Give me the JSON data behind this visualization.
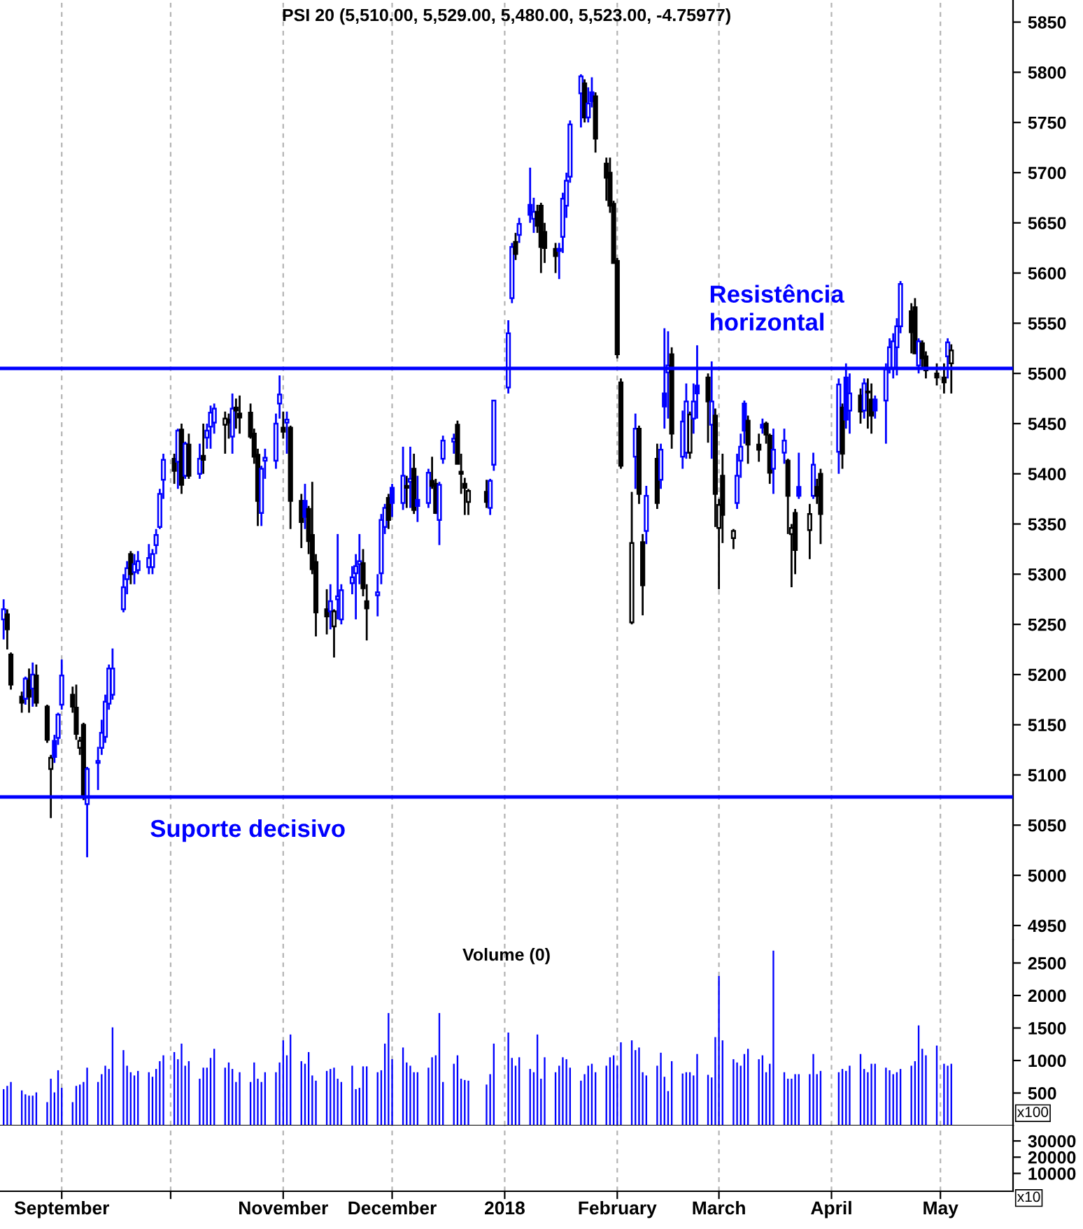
{
  "chart_data": [
    {
      "type": "candlestick",
      "title": "PSI 20 (5,510.00, 5,529.00, 5,480.00, 5,523.00, -4.75977)",
      "x": [
        "2017-08-16",
        "2017-08-17",
        "2017-08-18",
        "2017-08-21",
        "2017-08-22",
        "2017-08-23",
        "2017-08-24",
        "2017-08-25",
        "2017-08-28",
        "2017-08-29",
        "2017-08-30",
        "2017-08-31",
        "2017-09-01",
        "2017-09-04",
        "2017-09-05",
        "2017-09-06",
        "2017-09-07",
        "2017-09-08",
        "2017-09-11",
        "2017-09-12",
        "2017-09-13",
        "2017-09-14",
        "2017-09-15",
        "2017-09-18",
        "2017-09-19",
        "2017-09-20",
        "2017-09-21",
        "2017-09-22",
        "2017-09-25",
        "2017-09-26",
        "2017-09-27",
        "2017-09-28",
        "2017-09-29",
        "2017-10-02",
        "2017-10-03",
        "2017-10-04",
        "2017-10-05",
        "2017-10-06",
        "2017-10-09",
        "2017-10-10",
        "2017-10-11",
        "2017-10-12",
        "2017-10-13",
        "2017-10-16",
        "2017-10-17",
        "2017-10-18",
        "2017-10-19",
        "2017-10-20",
        "2017-10-23",
        "2017-10-24",
        "2017-10-25",
        "2017-10-26",
        "2017-10-27",
        "2017-10-30",
        "2017-10-31",
        "2017-11-01",
        "2017-11-02",
        "2017-11-03",
        "2017-11-06",
        "2017-11-07",
        "2017-11-08",
        "2017-11-09",
        "2017-11-10",
        "2017-11-13",
        "2017-11-14",
        "2017-11-15",
        "2017-11-16",
        "2017-11-17",
        "2017-11-20",
        "2017-11-21",
        "2017-11-22",
        "2017-11-23",
        "2017-11-24",
        "2017-11-27",
        "2017-11-28",
        "2017-11-29",
        "2017-11-30",
        "2017-12-01",
        "2017-12-04",
        "2017-12-05",
        "2017-12-06",
        "2017-12-07",
        "2017-12-08",
        "2017-12-11",
        "2017-12-12",
        "2017-12-13",
        "2017-12-14",
        "2017-12-15",
        "2017-12-18",
        "2017-12-19",
        "2017-12-20",
        "2017-12-21",
        "2017-12-22",
        "2017-12-27",
        "2017-12-28",
        "2017-12-29",
        "2018-01-02",
        "2018-01-03",
        "2018-01-04",
        "2018-01-05",
        "2018-01-08",
        "2018-01-09",
        "2018-01-10",
        "2018-01-11",
        "2018-01-12",
        "2018-01-15",
        "2018-01-16",
        "2018-01-17",
        "2018-01-18",
        "2018-01-19",
        "2018-01-22",
        "2018-01-23",
        "2018-01-24",
        "2018-01-25",
        "2018-01-26",
        "2018-01-29",
        "2018-01-30",
        "2018-01-31",
        "2018-02-01",
        "2018-02-02",
        "2018-02-05",
        "2018-02-06",
        "2018-02-07",
        "2018-02-08",
        "2018-02-09",
        "2018-02-12",
        "2018-02-13",
        "2018-02-14",
        "2018-02-15",
        "2018-02-16",
        "2018-02-19",
        "2018-02-20",
        "2018-02-21",
        "2018-02-22",
        "2018-02-23",
        "2018-02-26",
        "2018-02-27",
        "2018-02-28",
        "2018-03-01",
        "2018-03-02",
        "2018-03-05",
        "2018-03-06",
        "2018-03-07",
        "2018-03-08",
        "2018-03-09",
        "2018-03-12",
        "2018-03-13",
        "2018-03-14",
        "2018-03-15",
        "2018-03-16",
        "2018-03-19",
        "2018-03-20",
        "2018-03-21",
        "2018-03-22",
        "2018-03-23",
        "2018-03-26",
        "2018-03-27",
        "2018-03-28",
        "2018-03-29",
        "2018-04-03",
        "2018-04-04",
        "2018-04-05",
        "2018-04-06",
        "2018-04-09",
        "2018-04-10",
        "2018-04-11",
        "2018-04-12",
        "2018-04-13",
        "2018-04-16",
        "2018-04-17",
        "2018-04-18",
        "2018-04-19",
        "2018-04-20",
        "2018-04-23",
        "2018-04-24",
        "2018-04-25",
        "2018-04-26",
        "2018-04-27",
        "2018-04-30",
        "2018-05-02",
        "2018-05-03",
        "2018-05-04"
      ],
      "ohlc": [
        [
          5255,
          5275,
          5235,
          5265
        ],
        [
          5260,
          5265,
          5225,
          5245
        ],
        [
          5220,
          5222,
          5185,
          5190
        ],
        [
          5178,
          5183,
          5162,
          5172
        ],
        [
          5176,
          5198,
          5170,
          5196
        ],
        [
          5194,
          5206,
          5162,
          5178
        ],
        [
          5186,
          5212,
          5168,
          5200
        ],
        [
          5199,
          5210,
          5168,
          5172
        ],
        [
          5168,
          5170,
          5132,
          5135
        ],
        [
          5106,
          5120,
          5057,
          5117
        ],
        [
          5134,
          5140,
          5112,
          5118
        ],
        [
          5137,
          5162,
          5130,
          5160
        ],
        [
          5170,
          5215,
          5165,
          5199
        ],
        [
          5180,
          5188,
          5162,
          5168
        ],
        [
          5167,
          5190,
          5135,
          5141
        ],
        [
          5127,
          5138,
          5120,
          5134
        ],
        [
          5150,
          5152,
          5075,
          5080
        ],
        [
          5071,
          5108,
          5018,
          5106
        ],
        [
          5112,
          5128,
          5085,
          5114
        ],
        [
          5127,
          5155,
          5120,
          5142
        ],
        [
          5138,
          5180,
          5132,
          5173
        ],
        [
          5171,
          5210,
          5165,
          5206
        ],
        [
          5180,
          5226,
          5175,
          5206
        ],
        [
          5265,
          5300,
          5262,
          5287
        ],
        [
          5295,
          5313,
          5280,
          5306
        ],
        [
          5320,
          5323,
          5290,
          5300
        ],
        [
          5302,
          5320,
          5290,
          5310
        ],
        [
          5304,
          5323,
          5300,
          5313
        ],
        [
          5307,
          5330,
          5300,
          5316
        ],
        [
          5307,
          5325,
          5300,
          5320
        ],
        [
          5329,
          5345,
          5320,
          5339
        ],
        [
          5347,
          5385,
          5345,
          5380
        ],
        [
          5394,
          5420,
          5375,
          5414
        ],
        [
          5415,
          5420,
          5390,
          5403
        ],
        [
          5412,
          5445,
          5385,
          5443
        ],
        [
          5444,
          5450,
          5380,
          5389
        ],
        [
          5398,
          5432,
          5395,
          5430
        ],
        [
          5429,
          5440,
          5395,
          5398
        ],
        [
          5400,
          5430,
          5395,
          5415
        ],
        [
          5418,
          5450,
          5400,
          5414
        ],
        [
          5436,
          5450,
          5425,
          5443
        ],
        [
          5447,
          5468,
          5425,
          5461
        ],
        [
          5451,
          5470,
          5440,
          5465
        ],
        [
          5449,
          5462,
          5420,
          5455
        ],
        [
          5454,
          5460,
          5435,
          5451
        ],
        [
          5437,
          5480,
          5420,
          5465
        ],
        [
          5466,
          5475,
          5445,
          5463
        ],
        [
          5460,
          5478,
          5440,
          5456
        ],
        [
          5461,
          5470,
          5435,
          5437
        ],
        [
          5440,
          5445,
          5410,
          5417
        ],
        [
          5419,
          5425,
          5348,
          5373
        ],
        [
          5361,
          5408,
          5348,
          5405
        ],
        [
          5413,
          5425,
          5395,
          5416
        ],
        [
          5413,
          5460,
          5405,
          5450
        ],
        [
          5470,
          5498,
          5455,
          5479
        ],
        [
          5446,
          5462,
          5435,
          5442
        ],
        [
          5451,
          5462,
          5420,
          5454
        ],
        [
          5446,
          5448,
          5345,
          5373
        ],
        [
          5373,
          5380,
          5326,
          5352
        ],
        [
          5373,
          5390,
          5345,
          5357
        ],
        [
          5365,
          5368,
          5320,
          5333
        ],
        [
          5339,
          5392,
          5300,
          5305
        ],
        [
          5312,
          5320,
          5238,
          5262
        ],
        [
          5265,
          5285,
          5240,
          5258
        ],
        [
          5263,
          5290,
          5245,
          5273
        ],
        [
          5248,
          5265,
          5217,
          5263
        ],
        [
          5275,
          5340,
          5255,
          5278
        ],
        [
          5255,
          5290,
          5250,
          5284
        ],
        [
          5291,
          5308,
          5280,
          5297
        ],
        [
          5301,
          5320,
          5255,
          5308
        ],
        [
          5310,
          5340,
          5290,
          5313
        ],
        [
          5311,
          5325,
          5278,
          5286
        ],
        [
          5273,
          5290,
          5234,
          5266
        ],
        [
          5279,
          5300,
          5258,
          5282
        ],
        [
          5301,
          5360,
          5290,
          5354
        ],
        [
          5347,
          5370,
          5340,
          5366
        ],
        [
          5376,
          5380,
          5345,
          5354
        ],
        [
          5386,
          5390,
          5357,
          5371
        ],
        [
          5371,
          5427,
          5364,
          5398
        ],
        [
          5388,
          5398,
          5366,
          5386
        ],
        [
          5392,
          5427,
          5366,
          5395
        ],
        [
          5405,
          5420,
          5360,
          5364
        ],
        [
          5374,
          5398,
          5352,
          5368
        ],
        [
          5371,
          5405,
          5366,
          5401
        ],
        [
          5393,
          5417,
          5385,
          5388
        ],
        [
          5390,
          5395,
          5360,
          5361
        ],
        [
          5354,
          5392,
          5329,
          5389
        ],
        [
          5415,
          5438,
          5410,
          5433
        ],
        [
          5432,
          5440,
          5420,
          5435
        ],
        [
          5449,
          5453,
          5410,
          5410
        ],
        [
          5402,
          5420,
          5380,
          5400
        ],
        [
          5390,
          5396,
          5359,
          5386
        ],
        [
          5372,
          5385,
          5359,
          5383
        ],
        [
          5382,
          5394,
          5366,
          5372
        ],
        [
          5366,
          5395,
          5359,
          5393
        ],
        [
          5409,
          5473,
          5403,
          5473
        ],
        [
          5486,
          5553,
          5480,
          5540
        ],
        [
          5575,
          5630,
          5570,
          5626
        ],
        [
          5631,
          5640,
          5613,
          5619
        ],
        [
          5638,
          5655,
          5630,
          5649
        ],
        [
          5668,
          5705,
          5650,
          5658
        ],
        [
          5654,
          5675,
          5640,
          5661
        ],
        [
          5661,
          5668,
          5640,
          5647
        ],
        [
          5667,
          5670,
          5600,
          5626
        ],
        [
          5641,
          5650,
          5610,
          5625
        ],
        [
          5624,
          5630,
          5600,
          5617
        ],
        [
          5624,
          5630,
          5594,
          5622
        ],
        [
          5636,
          5680,
          5620,
          5674
        ],
        [
          5667,
          5700,
          5655,
          5692
        ],
        [
          5696,
          5752,
          5690,
          5748
        ],
        [
          5779,
          5798,
          5745,
          5796
        ],
        [
          5789,
          5793,
          5750,
          5755
        ],
        [
          5755,
          5785,
          5750,
          5769
        ],
        [
          5780,
          5795,
          5765,
          5771
        ],
        [
          5776,
          5780,
          5720,
          5734
        ],
        [
          5709,
          5715,
          5672,
          5695
        ],
        [
          5700,
          5715,
          5660,
          5667
        ],
        [
          5669,
          5672,
          5610,
          5610
        ],
        [
          5612,
          5615,
          5515,
          5519
        ],
        [
          5491,
          5495,
          5405,
          5408
        ],
        [
          5252,
          5382,
          5250,
          5331
        ],
        [
          5417,
          5460,
          5385,
          5445
        ],
        [
          5445,
          5448,
          5370,
          5380
        ],
        [
          5332,
          5340,
          5259,
          5289
        ],
        [
          5343,
          5388,
          5330,
          5378
        ],
        [
          5415,
          5430,
          5365,
          5371
        ],
        [
          5394,
          5430,
          5385,
          5424
        ],
        [
          5480,
          5545,
          5445,
          5467
        ],
        [
          5501,
          5542,
          5455,
          5508
        ],
        [
          5519,
          5526,
          5425,
          5440
        ],
        [
          5417,
          5463,
          5405,
          5452
        ],
        [
          5421,
          5490,
          5415,
          5472
        ],
        [
          5421,
          5462,
          5415,
          5459
        ],
        [
          5455,
          5490,
          5440,
          5472
        ],
        [
          5488,
          5528,
          5455,
          5480
        ],
        [
          5496,
          5500,
          5431,
          5472
        ],
        [
          5449,
          5512,
          5415,
          5472
        ],
        [
          5458,
          5465,
          5347,
          5380
        ],
        [
          5346,
          5375,
          5285,
          5369
        ],
        [
          5398,
          5420,
          5331,
          5359
        ],
        [
          5336,
          5345,
          5325,
          5343
        ],
        [
          5371,
          5420,
          5365,
          5398
        ],
        [
          5413,
          5440,
          5396,
          5427
        ],
        [
          5470,
          5473,
          5430,
          5443
        ],
        [
          5453,
          5458,
          5410,
          5429
        ],
        [
          5429,
          5440,
          5412,
          5424
        ],
        [
          5449,
          5455,
          5440,
          5446
        ],
        [
          5450,
          5452,
          5430,
          5439
        ],
        [
          5438,
          5440,
          5390,
          5401
        ],
        [
          5405,
          5445,
          5380,
          5424
        ],
        [
          5421,
          5445,
          5410,
          5433
        ],
        [
          5413,
          5415,
          5340,
          5378
        ],
        [
          5340,
          5350,
          5287,
          5346
        ],
        [
          5361,
          5365,
          5300,
          5324
        ],
        [
          5387,
          5421,
          5375,
          5378
        ],
        [
          5344,
          5370,
          5315,
          5360
        ],
        [
          5378,
          5421,
          5375,
          5409
        ],
        [
          5387,
          5395,
          5370,
          5378
        ],
        [
          5400,
          5405,
          5330,
          5360
        ],
        [
          5422,
          5495,
          5400,
          5489
        ],
        [
          5466,
          5470,
          5405,
          5420
        ],
        [
          5496,
          5510,
          5445,
          5454
        ],
        [
          5463,
          5500,
          5440,
          5480
        ],
        [
          5478,
          5485,
          5450,
          5462
        ],
        [
          5463,
          5495,
          5455,
          5490
        ],
        [
          5482,
          5495,
          5445,
          5481
        ],
        [
          5474,
          5490,
          5440,
          5458
        ],
        [
          5474,
          5478,
          5455,
          5463
        ],
        [
          5473,
          5510,
          5430,
          5504
        ],
        [
          5505,
          5535,
          5500,
          5526
        ],
        [
          5505,
          5540,
          5495,
          5532
        ],
        [
          5526,
          5555,
          5498,
          5547
        ],
        [
          5547,
          5592,
          5540,
          5589
        ],
        [
          5562,
          5570,
          5520,
          5541
        ],
        [
          5566,
          5575,
          5520,
          5520
        ],
        [
          5508,
          5535,
          5500,
          5532
        ],
        [
          5530,
          5533,
          5505,
          5515
        ],
        [
          5517,
          5522,
          5495,
          5503
        ],
        [
          5500,
          5510,
          5488,
          5496
        ],
        [
          5496,
          5510,
          5480,
          5491
        ],
        [
          5517,
          5535,
          5495,
          5531
        ],
        [
          5510,
          5529,
          5480,
          5523
        ]
      ],
      "colors": [
        "#0000ff",
        "#000000",
        "#000000",
        "#000000",
        "#0000ff",
        "#000000",
        "#0000ff",
        "#000000",
        "#000000",
        "#000000",
        "#0000ff",
        "#0000ff",
        "#0000ff",
        "#000000",
        "#000000",
        "#000000",
        "#000000",
        "#0000ff",
        "#0000ff",
        "#0000ff",
        "#0000ff",
        "#0000ff",
        "#0000ff",
        "#0000ff",
        "#0000ff",
        "#000000",
        "#0000ff",
        "#0000ff",
        "#0000ff",
        "#0000ff",
        "#0000ff",
        "#0000ff",
        "#0000ff",
        "#000000",
        "#0000ff",
        "#000000",
        "#0000ff",
        "#000000",
        "#0000ff",
        "#000000",
        "#0000ff",
        "#0000ff",
        "#0000ff",
        "#000000",
        "#000000",
        "#0000ff",
        "#000000",
        "#000000",
        "#000000",
        "#000000",
        "#000000",
        "#0000ff",
        "#0000ff",
        "#0000ff",
        "#0000ff",
        "#000000",
        "#0000ff",
        "#000000",
        "#000000",
        "#0000ff",
        "#000000",
        "#000000",
        "#000000",
        "#000000",
        "#0000ff",
        "#000000",
        "#0000ff",
        "#0000ff",
        "#0000ff",
        "#0000ff",
        "#0000ff",
        "#000000",
        "#000000",
        "#0000ff",
        "#0000ff",
        "#0000ff",
        "#000000",
        "#0000ff",
        "#0000ff",
        "#000000",
        "#0000ff",
        "#000000",
        "#0000ff",
        "#0000ff",
        "#000000",
        "#000000",
        "#0000ff",
        "#0000ff",
        "#0000ff",
        "#000000",
        "#000000",
        "#000000",
        "#000000",
        "#000000",
        "#0000ff",
        "#0000ff",
        "#0000ff",
        "#0000ff",
        "#000000",
        "#0000ff",
        "#0000ff",
        "#0000ff",
        "#000000",
        "#000000",
        "#000000",
        "#000000",
        "#0000ff",
        "#0000ff",
        "#0000ff",
        "#0000ff",
        "#0000ff",
        "#000000",
        "#0000ff",
        "#0000ff",
        "#000000",
        "#000000",
        "#000000",
        "#000000",
        "#000000",
        "#000000",
        "#000000",
        "#0000ff",
        "#000000",
        "#000000",
        "#0000ff",
        "#000000",
        "#0000ff",
        "#0000ff",
        "#0000ff",
        "#000000",
        "#0000ff",
        "#0000ff",
        "#000000",
        "#0000ff",
        "#0000ff",
        "#000000",
        "#0000ff",
        "#000000",
        "#000000",
        "#000000",
        "#000000",
        "#0000ff",
        "#0000ff",
        "#0000ff",
        "#000000",
        "#000000",
        "#0000ff",
        "#000000",
        "#000000",
        "#0000ff",
        "#0000ff",
        "#000000",
        "#000000",
        "#000000",
        "#0000ff",
        "#000000",
        "#0000ff",
        "#000000",
        "#000000",
        "#0000ff",
        "#000000",
        "#0000ff",
        "#0000ff",
        "#000000",
        "#0000ff",
        "#000000",
        "#000000",
        "#0000ff",
        "#0000ff",
        "#0000ff",
        "#0000ff",
        "#0000ff",
        "#0000ff",
        "#000000",
        "#000000",
        "#0000ff",
        "#000000",
        "#000000",
        "#000000",
        "#000000",
        "#0000ff",
        "#000000"
      ],
      "xlim": [
        "2017-08-15",
        "2018-05-21"
      ],
      "xticks": [
        {
          "value": "2017-09-01",
          "label": null
        },
        {
          "value": "2017-10-01",
          "label": null
        },
        {
          "value": "2017-11-01",
          "label": null
        },
        {
          "value": "2017-12-01",
          "label": null
        },
        {
          "value": "2018-01-01",
          "label": null
        },
        {
          "value": "2018-02-01",
          "label": null
        },
        {
          "value": "2018-03-01",
          "label": null
        },
        {
          "value": "2018-04-01",
          "label": null
        },
        {
          "value": "2018-05-01",
          "label": null
        }
      ],
      "ylim": [
        4936,
        5872
      ],
      "yticks": [
        4950,
        5000,
        5050,
        5100,
        5150,
        5200,
        5250,
        5300,
        5350,
        5400,
        5450,
        5500,
        5550,
        5600,
        5650,
        5700,
        5750,
        5800,
        5850
      ],
      "ref_lines": [
        {
          "axis": "y",
          "value": 5505,
          "color": "#0000ff"
        },
        {
          "axis": "y",
          "value": 5078,
          "color": "#0000ff"
        }
      ],
      "annotations": [
        "Resistência\nhorizontal",
        "Suporte decisivo"
      ],
      "grid": "x",
      "tick_labels": "y"
    },
    {
      "type": "bar",
      "title": "Volume (0)",
      "x": [
        "2017-08-16",
        "2017-08-17",
        "2017-08-18",
        "2017-08-21",
        "2017-08-22",
        "2017-08-23",
        "2017-08-24",
        "2017-08-25",
        "2017-08-28",
        "2017-08-29",
        "2017-08-30",
        "2017-08-31",
        "2017-09-01",
        "2017-09-04",
        "2017-09-05",
        "2017-09-06",
        "2017-09-07",
        "2017-09-08",
        "2017-09-11",
        "2017-09-12",
        "2017-09-13",
        "2017-09-14",
        "2017-09-15",
        "2017-09-18",
        "2017-09-19",
        "2017-09-20",
        "2017-09-21",
        "2017-09-22",
        "2017-09-25",
        "2017-09-26",
        "2017-09-27",
        "2017-09-28",
        "2017-09-29",
        "2017-10-02",
        "2017-10-03",
        "2017-10-04",
        "2017-10-05",
        "2017-10-06",
        "2017-10-09",
        "2017-10-10",
        "2017-10-11",
        "2017-10-12",
        "2017-10-13",
        "2017-10-16",
        "2017-10-17",
        "2017-10-18",
        "2017-10-19",
        "2017-10-20",
        "2017-10-23",
        "2017-10-24",
        "2017-10-25",
        "2017-10-26",
        "2017-10-27",
        "2017-10-30",
        "2017-10-31",
        "2017-11-01",
        "2017-11-02",
        "2017-11-03",
        "2017-11-06",
        "2017-11-07",
        "2017-11-08",
        "2017-11-09",
        "2017-11-10",
        "2017-11-13",
        "2017-11-14",
        "2017-11-15",
        "2017-11-16",
        "2017-11-17",
        "2017-11-20",
        "2017-11-21",
        "2017-11-22",
        "2017-11-23",
        "2017-11-24",
        "2017-11-27",
        "2017-11-28",
        "2017-11-29",
        "2017-11-30",
        "2017-12-01",
        "2017-12-04",
        "2017-12-05",
        "2017-12-06",
        "2017-12-07",
        "2017-12-08",
        "2017-12-11",
        "2017-12-12",
        "2017-12-13",
        "2017-12-14",
        "2017-12-15",
        "2017-12-18",
        "2017-12-19",
        "2017-12-20",
        "2017-12-21",
        "2017-12-22",
        "2017-12-27",
        "2017-12-28",
        "2017-12-29",
        "2018-01-02",
        "2018-01-03",
        "2018-01-04",
        "2018-01-05",
        "2018-01-08",
        "2018-01-09",
        "2018-01-10",
        "2018-01-11",
        "2018-01-12",
        "2018-01-15",
        "2018-01-16",
        "2018-01-17",
        "2018-01-18",
        "2018-01-19",
        "2018-01-22",
        "2018-01-23",
        "2018-01-24",
        "2018-01-25",
        "2018-01-26",
        "2018-01-29",
        "2018-01-30",
        "2018-01-31",
        "2018-02-01",
        "2018-02-02",
        "2018-02-05",
        "2018-02-06",
        "2018-02-07",
        "2018-02-08",
        "2018-02-09",
        "2018-02-12",
        "2018-02-13",
        "2018-02-14",
        "2018-02-15",
        "2018-02-16",
        "2018-02-19",
        "2018-02-20",
        "2018-02-21",
        "2018-02-22",
        "2018-02-23",
        "2018-02-26",
        "2018-02-27",
        "2018-02-28",
        "2018-03-01",
        "2018-03-02",
        "2018-03-05",
        "2018-03-06",
        "2018-03-07",
        "2018-03-08",
        "2018-03-09",
        "2018-03-12",
        "2018-03-13",
        "2018-03-14",
        "2018-03-15",
        "2018-03-16",
        "2018-03-19",
        "2018-03-20",
        "2018-03-21",
        "2018-03-22",
        "2018-03-23",
        "2018-03-26",
        "2018-03-27",
        "2018-03-28",
        "2018-03-29",
        "2018-04-03",
        "2018-04-04",
        "2018-04-05",
        "2018-04-06",
        "2018-04-09",
        "2018-04-10",
        "2018-04-11",
        "2018-04-12",
        "2018-04-13",
        "2018-04-16",
        "2018-04-17",
        "2018-04-18",
        "2018-04-19",
        "2018-04-20",
        "2018-04-23",
        "2018-04-24",
        "2018-04-25",
        "2018-04-26",
        "2018-04-27",
        "2018-04-30",
        "2018-05-02",
        "2018-05-03",
        "2018-05-04"
      ],
      "series": [
        {
          "color": "#0000ff",
          "values": [
            560,
            610,
            670,
            540,
            480,
            460,
            460,
            510,
            360,
            720,
            510,
            850,
            580,
            360,
            610,
            630,
            670,
            890,
            670,
            790,
            920,
            870,
            1510,
            1160,
            920,
            820,
            770,
            840,
            820,
            750,
            870,
            990,
            1080,
            1130,
            1020,
            1260,
            920,
            990,
            720,
            890,
            890,
            1040,
            1180,
            890,
            970,
            870,
            670,
            820,
            670,
            970,
            720,
            670,
            820,
            820,
            970,
            1310,
            1080,
            1400,
            990,
            950,
            1130,
            770,
            690,
            840,
            870,
            890,
            720,
            670,
            920,
            560,
            580,
            910,
            910,
            820,
            850,
            1260,
            1730,
            1020,
            1200,
            970,
            920,
            820,
            820,
            890,
            1050,
            1080,
            1730,
            670,
            950,
            1080,
            720,
            700,
            690,
            630,
            790,
            1260,
            1430,
            1040,
            920,
            1050,
            870,
            820,
            1400,
            720,
            1050,
            820,
            920,
            1050,
            1020,
            890,
            690,
            790,
            920,
            950,
            820,
            920,
            1050,
            1080,
            920,
            1280,
            1310,
            1160,
            1200,
            820,
            770,
            920,
            1120,
            750,
            530,
            990,
            800,
            820,
            820,
            770,
            1100,
            780,
            740,
            1360,
            2300,
            1310,
            1020,
            970,
            920,
            1100,
            1180,
            1020,
            1080,
            820,
            950,
            2690,
            820,
            720,
            720,
            790,
            790,
            790,
            1100,
            790,
            840,
            820,
            870,
            840,
            920,
            1100,
            870,
            820,
            950,
            950,
            890,
            850,
            790,
            820,
            870,
            920,
            990,
            1540,
            1180,
            1080,
            1230,
            950,
            920,
            950
          ]
        }
      ],
      "xlim": [
        "2017-08-15",
        "2018-05-21"
      ],
      "xticks": [
        {
          "value": "2017-09-01",
          "label": null
        },
        {
          "value": "2017-10-01",
          "label": null
        },
        {
          "value": "2017-11-01",
          "label": null
        },
        {
          "value": "2017-12-01",
          "label": null
        },
        {
          "value": "2018-01-01",
          "label": null
        },
        {
          "value": "2018-02-01",
          "label": null
        },
        {
          "value": "2018-03-01",
          "label": null
        },
        {
          "value": "2018-04-01",
          "label": null
        },
        {
          "value": "2018-05-01",
          "label": null
        }
      ],
      "ylim": [
        0,
        2860
      ],
      "yticks": [
        500,
        1000,
        1500,
        2000,
        2500
      ],
      "annotations": [
        "x100"
      ],
      "grid": "x",
      "tick_labels": "y"
    },
    {
      "type": "line",
      "xlim": [
        "2017-08-15",
        "2018-05-21"
      ],
      "xticks": [
        {
          "value": "2017-09-01",
          "label": "September"
        },
        {
          "value": "2017-10-01",
          "label": null
        },
        {
          "value": "2017-11-01",
          "label": "November"
        },
        {
          "value": "2017-12-01",
          "label": "December"
        },
        {
          "value": "2018-01-01",
          "label": "2018"
        },
        {
          "value": "2018-02-01",
          "label": "February"
        },
        {
          "value": "2018-03-01",
          "label": "March"
        },
        {
          "value": "2018-04-01",
          "label": "April"
        },
        {
          "value": "2018-05-01",
          "label": "May"
        }
      ],
      "ylim": [
        -1000,
        39500
      ],
      "yticks": [
        10000,
        20000,
        30000
      ],
      "annotations": [
        "x10"
      ],
      "grid": "x"
    }
  ]
}
